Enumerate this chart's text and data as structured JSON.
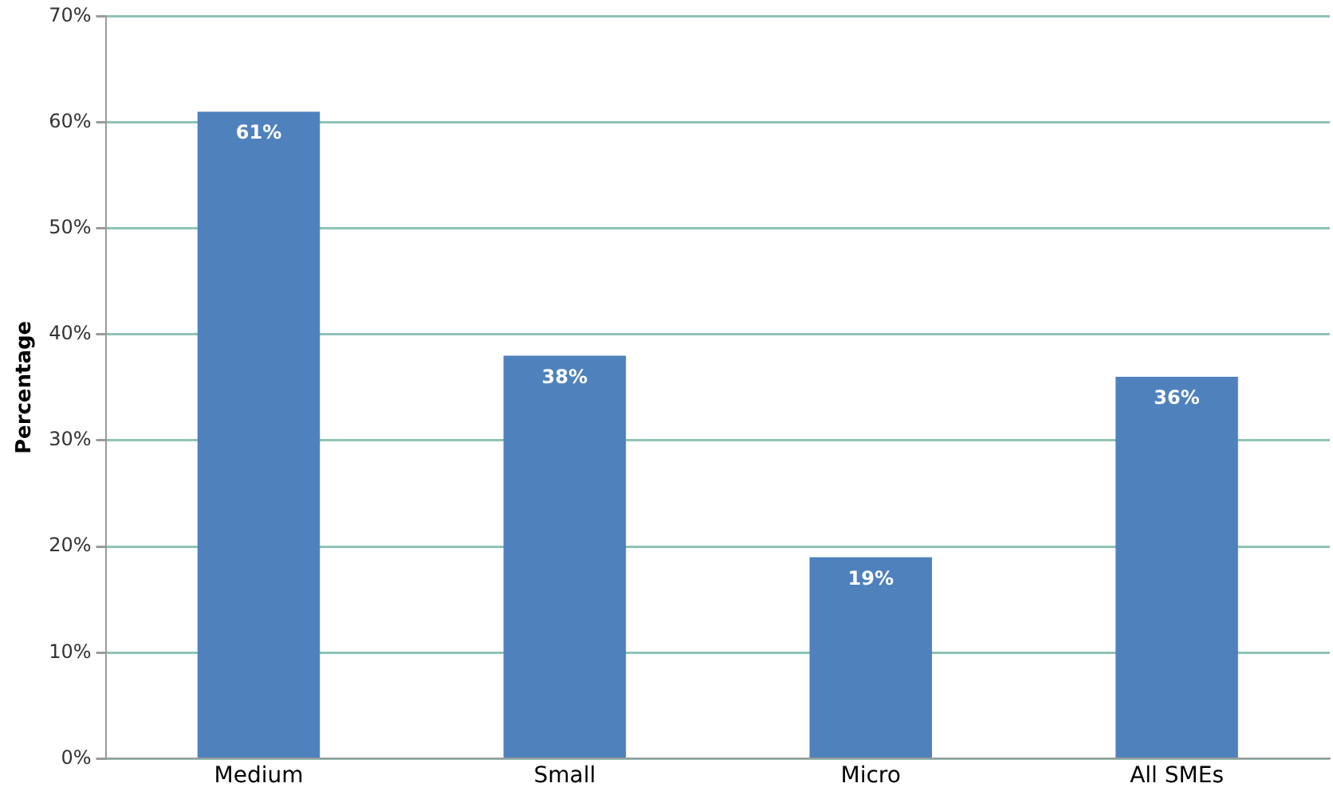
{
  "chart_data": {
    "type": "bar",
    "ylabel": "Percentage",
    "categories": [
      "Medium",
      "Small",
      "Micro",
      "All SMEs"
    ],
    "values": [
      61,
      38,
      19,
      36
    ],
    "color": "#4f81bd",
    "value_labels": [
      "61%",
      "38%",
      "19%",
      "36%"
    ],
    "ylim": [
      0,
      70
    ],
    "yticks": [
      {
        "value": 0,
        "label": "0%"
      },
      {
        "value": 10,
        "label": "10%"
      },
      {
        "value": 20,
        "label": "20%"
      },
      {
        "value": 30,
        "label": "30%"
      },
      {
        "value": 40,
        "label": "40%"
      },
      {
        "value": 50,
        "label": "50%"
      },
      {
        "value": 60,
        "label": "60%"
      },
      {
        "value": 70,
        "label": "70%"
      }
    ],
    "grid": "y",
    "legend": false
  }
}
